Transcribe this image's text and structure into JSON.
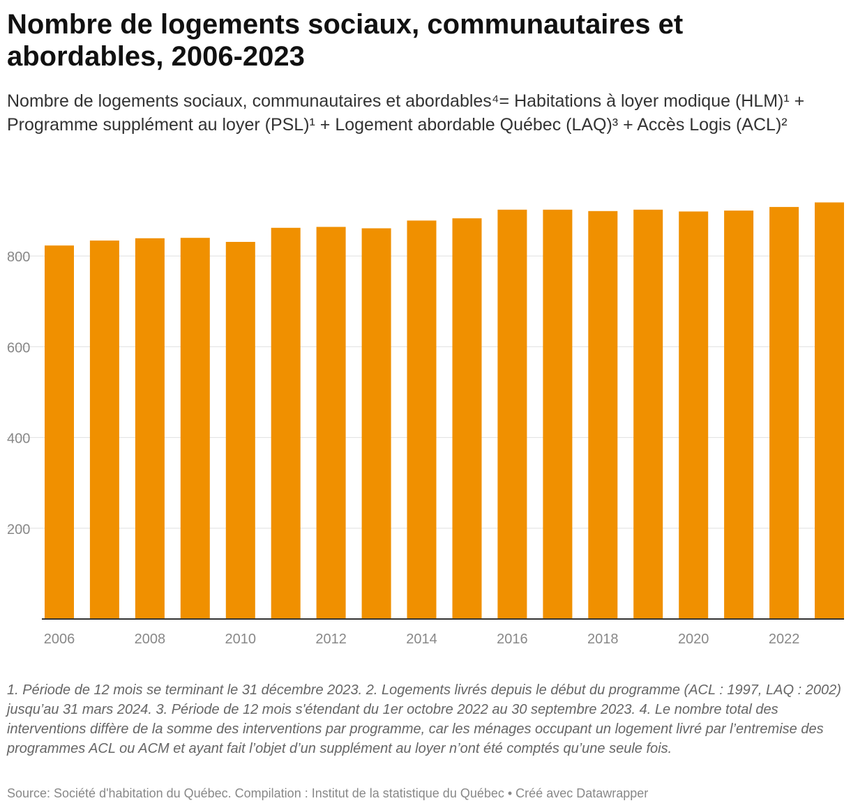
{
  "title": "Nombre de logements sociaux, communautaires et abordables, 2006-2023",
  "subtitle": "Nombre de logements sociaux, communautaires et abordables⁴= Habitations à loyer modique (HLM)¹ + Programme supplément au loyer (PSL)¹ + Logement abordable Québec (LAQ)³ + Accès Logis (ACL)²",
  "notes": "1. Période de 12 mois se terminant le 31 décembre 2023. 2. Logements livrés depuis le début du programme (ACL : 1997, LAQ : 2002) jusqu’au 31 mars 2024. 3. Période de 12 mois s'étendant du 1er octobre 2022 au 30 septembre 2023. 4. Le nombre total des interventions diffère de la somme des interventions par programme, car les ménages occupant un logement livré par l’entremise des programmes ACL ou ACM et ayant fait l’objet d’un supplément au loyer n’ont été comptés qu’une seule fois.",
  "source": "Source: Société d'habitation du Québec. Compilation : Institut de la statistique du Québec • Créé avec Datawrapper",
  "chart_data": {
    "type": "bar",
    "title": "Nombre de logements sociaux, communautaires et abordables, 2006-2023",
    "categories": [
      "2006",
      "2007",
      "2008",
      "2009",
      "2010",
      "2011",
      "2012",
      "2013",
      "2014",
      "2015",
      "2016",
      "2017",
      "2018",
      "2019",
      "2020",
      "2021",
      "2022",
      "2023"
    ],
    "values": [
      823,
      834,
      839,
      840,
      831,
      862,
      864,
      861,
      878,
      883,
      902,
      902,
      899,
      902,
      898,
      900,
      908,
      918
    ],
    "x_tick_labels": [
      "2006",
      "2008",
      "2010",
      "2012",
      "2014",
      "2016",
      "2018",
      "2020",
      "2022"
    ],
    "y_ticks": [
      200,
      400,
      600,
      800
    ],
    "ylim": [
      0,
      950
    ],
    "xlabel": "",
    "ylabel": "",
    "grid": true,
    "bar_color": "#f09000",
    "grid_color": "#e0e0e0",
    "axis_color": "#333333"
  }
}
